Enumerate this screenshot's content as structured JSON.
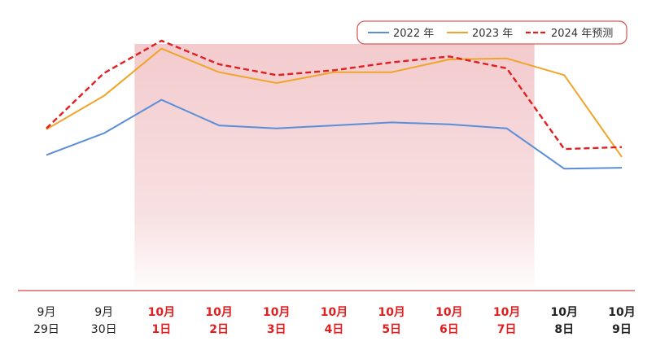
{
  "chart_data": {
    "type": "line",
    "categories": [
      "9月29日",
      "9月30日",
      "10月1日",
      "10月2日",
      "10月3日",
      "10月4日",
      "10月5日",
      "10月6日",
      "10月7日",
      "10月8日",
      "10月9日"
    ],
    "tick_labels": [
      {
        "month": "9月",
        "day": "29日",
        "holiday": false
      },
      {
        "month": "9月",
        "day": "30日",
        "holiday": false
      },
      {
        "month": "10月",
        "day": "1日",
        "holiday": true
      },
      {
        "month": "10月",
        "day": "2日",
        "holiday": true
      },
      {
        "month": "10月",
        "day": "3日",
        "holiday": true
      },
      {
        "month": "10月",
        "day": "4日",
        "holiday": true
      },
      {
        "month": "10月",
        "day": "5日",
        "holiday": true
      },
      {
        "month": "10月",
        "day": "6日",
        "holiday": true
      },
      {
        "month": "10月",
        "day": "7日",
        "holiday": true
      },
      {
        "month": "10月",
        "day": "8日",
        "holiday": false
      },
      {
        "month": "10月",
        "day": "9日",
        "holiday": false
      }
    ],
    "series": [
      {
        "name": "2022 年",
        "color": "#5b8ed8",
        "dash": false,
        "values": [
          42,
          53,
          70,
          57,
          55.5,
          57,
          58.5,
          57.5,
          55.5,
          35,
          35.5
        ]
      },
      {
        "name": "2023 年",
        "color": "#f0a52a",
        "dash": false,
        "values": [
          55,
          72,
          96,
          84,
          78.5,
          84,
          84,
          90.5,
          91,
          82.5,
          41
        ]
      },
      {
        "name": "2024 年预测",
        "color": "#e02020",
        "dash": true,
        "values": [
          55.5,
          83.5,
          100,
          88,
          82.5,
          85,
          89,
          92,
          86,
          45,
          46
        ]
      }
    ],
    "highlight_range": [
      "10月1日",
      "10月7日"
    ],
    "highlight_color": "#f2c8cb",
    "holiday_label_color": "#e02020",
    "normal_label_color": "#222222",
    "axis_color": "#e88a8a",
    "ylim": [
      0,
      115
    ],
    "grid": false,
    "legend_position": "top-right",
    "title": "",
    "xlabel": "",
    "ylabel": ""
  }
}
